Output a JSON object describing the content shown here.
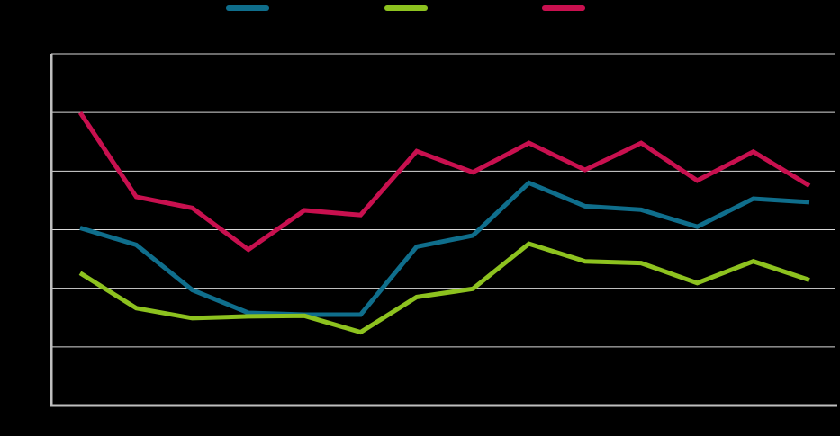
{
  "chart_data": {
    "type": "line",
    "title": "",
    "xlabel": "",
    "ylabel": "",
    "ylim": [
      0,
      6
    ],
    "grid": true,
    "legend_placement": "top-center",
    "x": [
      1,
      2,
      3,
      4,
      5,
      6,
      7,
      8,
      9,
      10,
      11,
      12,
      13,
      14
    ],
    "series": [
      {
        "color": "#0f6e8c",
        "values": [
          3.03,
          2.74,
          1.97,
          1.58,
          1.55,
          1.55,
          2.71,
          2.9,
          3.8,
          3.4,
          3.34,
          3.05,
          3.53,
          3.47
        ]
      },
      {
        "color": "#8dc21f",
        "values": [
          2.26,
          1.66,
          1.49,
          1.52,
          1.53,
          1.25,
          1.85,
          1.99,
          2.76,
          2.46,
          2.43,
          2.09,
          2.46,
          2.14
        ]
      },
      {
        "color": "#c8104f",
        "values": [
          5.0,
          3.56,
          3.37,
          2.66,
          3.33,
          3.25,
          4.34,
          3.98,
          4.48,
          4.02,
          4.48,
          3.84,
          4.33,
          3.75
        ]
      }
    ]
  }
}
